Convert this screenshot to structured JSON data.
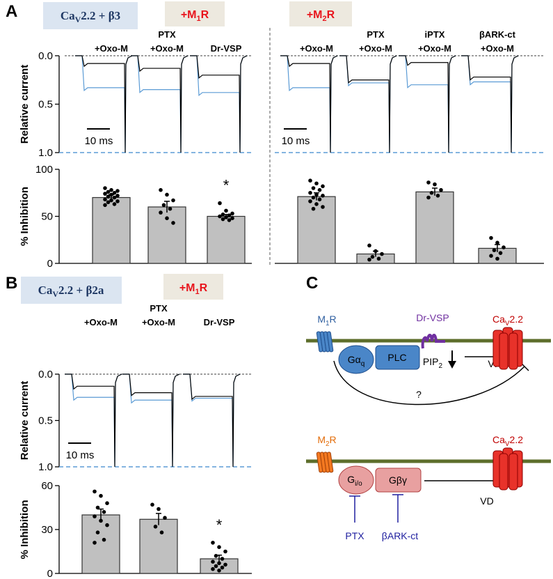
{
  "panel_labels": [
    "A",
    "B",
    "C"
  ],
  "labels": {
    "A_construct": {
      "base": "Ca",
      "sub": "V",
      "after": "2.2 + β3"
    },
    "A_m1": {
      "base": "+M",
      "sub": "1",
      "after": "R"
    },
    "A_m2": {
      "base": "+M",
      "sub": "2",
      "after": "R"
    },
    "B_construct": {
      "base": "Ca",
      "sub": "V",
      "after": "2.2 + β2a"
    },
    "B_m1": {
      "base": "+M",
      "sub": "1",
      "after": "R"
    }
  },
  "chart_data": [
    {
      "type": "trace",
      "categories": [
        "+Oxo-M",
        [
          "PTX",
          "+Oxo-M"
        ],
        "Dr-VSP"
      ],
      "ylabel": "Relative current",
      "ylim": [
        0,
        1
      ],
      "inverted": true,
      "yticks": [
        {
          "value": 0,
          "label": "0.0"
        },
        {
          "value": 0.5,
          "label": "0.5"
        },
        {
          "value": 1,
          "label": "1.0"
        }
      ],
      "scale_bar": "10 ms",
      "series": [
        {
          "color": "#5b9bd5",
          "values": [
            0.33,
            0.35,
            0.38
          ]
        },
        {
          "color": "#000000",
          "values": [
            0.08,
            0.13,
            0.2
          ]
        }
      ]
    },
    {
      "type": "bar",
      "ylabel": "% Inhibition",
      "ylim": [
        0,
        100
      ],
      "yticks": [
        0,
        50,
        100
      ],
      "color": "#c0c0c0",
      "values": [
        70,
        60,
        50
      ],
      "errors": [
        3,
        6,
        2
      ],
      "points": [
        [
          80,
          78,
          77,
          76,
          75,
          74,
          73,
          72,
          71,
          70,
          68,
          67,
          66,
          65,
          63,
          62
        ],
        [
          78,
          73,
          67,
          62,
          58,
          54,
          48,
          43
        ],
        [
          64,
          56,
          53,
          52,
          51,
          50,
          49,
          48,
          47,
          46
        ]
      ],
      "significance": [
        null,
        null,
        "*"
      ]
    },
    {
      "type": "trace",
      "categories": [
        "+Oxo-M",
        [
          "PTX",
          "+Oxo-M"
        ],
        [
          "iPTX",
          "+Oxo-M"
        ],
        [
          "βARK-ct",
          "+Oxo-M"
        ]
      ],
      "ylim": [
        0,
        1
      ],
      "inverted": true,
      "scale_bar": "10 ms",
      "series": [
        {
          "color": "#5b9bd5",
          "values": [
            0.33,
            0.28,
            0.3,
            0.27
          ]
        },
        {
          "color": "#000000",
          "values": [
            0.08,
            0.25,
            0.07,
            0.22
          ]
        }
      ]
    },
    {
      "type": "bar",
      "ylim": [
        0,
        100
      ],
      "color": "#c0c0c0",
      "values": [
        71,
        10,
        76,
        16
      ],
      "errors": [
        4,
        3,
        4,
        4
      ],
      "points": [
        [
          88,
          85,
          82,
          80,
          78,
          75,
          73,
          72,
          70,
          68,
          66,
          63,
          60,
          58
        ],
        [
          19,
          13,
          10,
          7,
          5,
          4
        ],
        [
          86,
          84,
          78,
          75,
          72,
          70
        ],
        [
          27,
          22,
          17,
          14,
          11,
          8,
          5
        ]
      ]
    },
    {
      "type": "trace",
      "categories": [
        "+Oxo-M",
        [
          "PTX",
          "+Oxo-M"
        ],
        "Dr-VSP"
      ],
      "ylabel": "Relative current",
      "ylim": [
        0,
        1
      ],
      "inverted": true,
      "yticks": [
        {
          "value": 0,
          "label": "0.0"
        },
        {
          "value": 0.5,
          "label": "0.5"
        },
        {
          "value": 1,
          "label": "1.0"
        }
      ],
      "scale_bar": "10 ms",
      "series": [
        {
          "color": "#5b9bd5",
          "values": [
            0.25,
            0.28,
            0.26
          ]
        },
        {
          "color": "#000000",
          "values": [
            0.13,
            0.2,
            0.24
          ]
        }
      ]
    },
    {
      "type": "bar",
      "ylabel": "% Inhibition",
      "ylim": [
        0,
        60
      ],
      "yticks": [
        0,
        30,
        60
      ],
      "color": "#c0c0c0",
      "values": [
        40,
        37,
        10
      ],
      "errors": [
        4,
        4,
        2.5
      ],
      "points": [
        [
          56,
          53,
          48,
          45,
          42,
          39,
          36,
          33,
          28,
          23,
          21
        ],
        [
          47,
          44,
          38,
          32,
          28
        ],
        [
          21,
          18,
          15,
          12,
          10,
          8,
          7,
          6,
          5,
          4,
          3,
          2
        ]
      ],
      "significance": [
        null,
        null,
        "*"
      ]
    }
  ],
  "diagram": {
    "top": {
      "receptor": {
        "base": "M",
        "sub": "1",
        "after": "R"
      },
      "g_protein": {
        "base": "Gα",
        "sub": "q"
      },
      "effector": "PLC",
      "phosphatase": "Dr-VSP",
      "lipid": {
        "base": "PIP",
        "sub": "2"
      },
      "mechanism": "VI",
      "unknown": "?",
      "channel": {
        "base": "Ca",
        "sub": "V",
        "after": "2.2"
      }
    },
    "bottom": {
      "receptor": {
        "base": "M",
        "sub": "2",
        "after": "R"
      },
      "g_protein": {
        "base": "G",
        "sub": "i/o"
      },
      "effector": "Gβγ",
      "mechanism": "VD",
      "channel": {
        "base": "Ca",
        "sub": "V",
        "after": "2.2"
      },
      "blockers": [
        "PTX",
        "βARK-ct"
      ]
    }
  }
}
